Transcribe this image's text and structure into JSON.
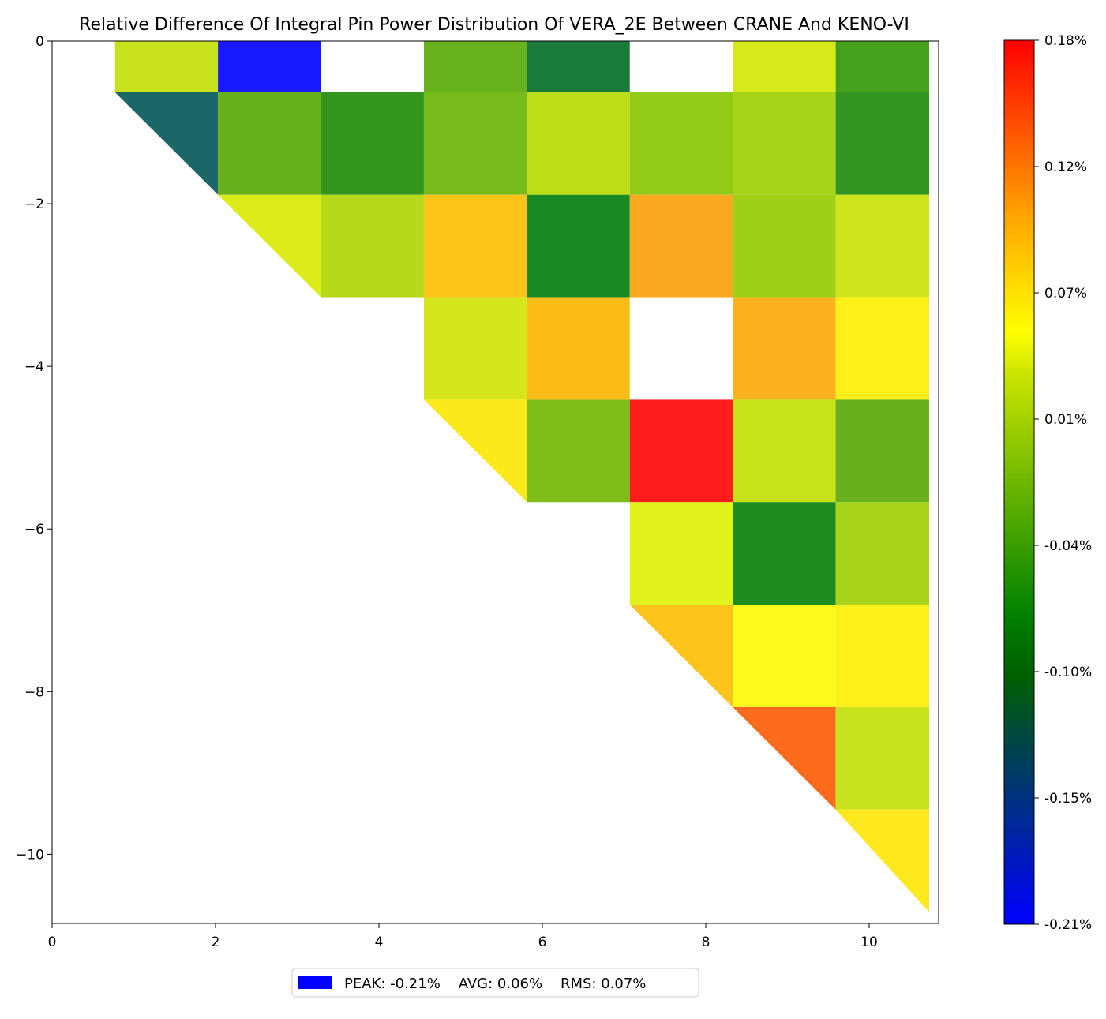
{
  "chart_data": {
    "type": "heatmap",
    "title": "Relative Difference Of Integral Pin Power Distribution Of VERA_2E Between CRANE And KENO-VI",
    "xlabel": "",
    "ylabel": "",
    "xlim": [
      0,
      10.85
    ],
    "ylim": [
      -10.85,
      0
    ],
    "xticks": [
      0,
      2,
      4,
      6,
      8,
      10
    ],
    "xtick_labels": [
      "0",
      "2",
      "4",
      "6",
      "8",
      "10"
    ],
    "yticks": [
      0,
      -2,
      -4,
      -6,
      -8,
      -10
    ],
    "ytick_labels": [
      "0",
      "−2",
      "−4",
      "−6",
      "−8",
      "−10"
    ],
    "colorbar": {
      "min": -0.21,
      "max": 0.18,
      "tick_labels": [
        "0.18%",
        "0.12%",
        "0.07%",
        "0.01%",
        "-0.04%",
        "-0.10%",
        "-0.15%",
        "-0.21%"
      ],
      "colors": {
        "-0.21": "#0000ff",
        "-0.10": "#008000",
        "0.04": "#ffff00",
        "0.10": "#ffa500",
        "0.18": "#ff0000"
      }
    },
    "cell_size": 1.26,
    "cells": [
      {
        "row": 0,
        "col": 1,
        "value": 0.005,
        "color": "#c9e21e"
      },
      {
        "row": 0,
        "col": 2,
        "value": -0.21,
        "color": "#1919ff"
      },
      {
        "row": 0,
        "col": 4,
        "value": -0.045,
        "color": "#68b21f"
      },
      {
        "row": 0,
        "col": 5,
        "value": -0.125,
        "color": "#1b7b3d"
      },
      {
        "row": 0,
        "col": 7,
        "value": 0.02,
        "color": "#d6e91b"
      },
      {
        "row": 0,
        "col": 8,
        "value": -0.07,
        "color": "#45a01e"
      },
      {
        "row": 1,
        "col": 1,
        "value": -0.15,
        "color": "#1b6666",
        "shape": "tri"
      },
      {
        "row": 1,
        "col": 2,
        "value": -0.05,
        "color": "#66b01e"
      },
      {
        "row": 1,
        "col": 3,
        "value": -0.085,
        "color": "#33951e"
      },
      {
        "row": 1,
        "col": 4,
        "value": -0.035,
        "color": "#78b91c"
      },
      {
        "row": 1,
        "col": 5,
        "value": 0.0,
        "color": "#bcdd18"
      },
      {
        "row": 1,
        "col": 6,
        "value": -0.02,
        "color": "#93c917"
      },
      {
        "row": 1,
        "col": 7,
        "value": -0.01,
        "color": "#a7d31a"
      },
      {
        "row": 1,
        "col": 8,
        "value": -0.085,
        "color": "#339421"
      },
      {
        "row": 2,
        "col": 2,
        "value": 0.02,
        "color": "#dcec1b",
        "shape": "tri"
      },
      {
        "row": 2,
        "col": 3,
        "value": -0.005,
        "color": "#b6da19"
      },
      {
        "row": 2,
        "col": 4,
        "value": 0.085,
        "color": "#fdc51a"
      },
      {
        "row": 2,
        "col": 5,
        "value": -0.1,
        "color": "#1c8a24"
      },
      {
        "row": 2,
        "col": 6,
        "value": 0.1,
        "color": "#fba821"
      },
      {
        "row": 2,
        "col": 7,
        "value": -0.015,
        "color": "#a0cf17"
      },
      {
        "row": 2,
        "col": 8,
        "value": 0.01,
        "color": "#cee41c"
      },
      {
        "row": 3,
        "col": 4,
        "value": 0.015,
        "color": "#d5e71c"
      },
      {
        "row": 3,
        "col": 5,
        "value": 0.085,
        "color": "#fcbc18"
      },
      {
        "row": 3,
        "col": 7,
        "value": 0.095,
        "color": "#fcb11e"
      },
      {
        "row": 3,
        "col": 8,
        "value": 0.055,
        "color": "#fdef18"
      },
      {
        "row": 4,
        "col": 4,
        "value": 0.055,
        "color": "#fbe91b",
        "shape": "tri"
      },
      {
        "row": 4,
        "col": 5,
        "value": -0.035,
        "color": "#80bd1a"
      },
      {
        "row": 4,
        "col": 6,
        "value": 0.18,
        "color": "#ff1c1c"
      },
      {
        "row": 4,
        "col": 7,
        "value": 0.005,
        "color": "#c6e218"
      },
      {
        "row": 4,
        "col": 8,
        "value": -0.05,
        "color": "#68b01e"
      },
      {
        "row": 5,
        "col": 6,
        "value": 0.03,
        "color": "#e2f21c"
      },
      {
        "row": 5,
        "col": 7,
        "value": -0.1,
        "color": "#1f8c22"
      },
      {
        "row": 5,
        "col": 8,
        "value": -0.01,
        "color": "#a8d31a"
      },
      {
        "row": 6,
        "col": 6,
        "value": 0.085,
        "color": "#fdc41b",
        "shape": "tri"
      },
      {
        "row": 6,
        "col": 7,
        "value": 0.045,
        "color": "#fbfa1b"
      },
      {
        "row": 6,
        "col": 8,
        "value": 0.055,
        "color": "#fdf11b"
      },
      {
        "row": 7,
        "col": 7,
        "value": 0.135,
        "color": "#ff6b1c",
        "shape": "tri"
      },
      {
        "row": 7,
        "col": 8,
        "value": 0.005,
        "color": "#c6e31e"
      },
      {
        "row": 8,
        "col": 8,
        "value": 0.06,
        "color": "#fde91d",
        "shape": "tri"
      }
    ]
  },
  "legend": {
    "swatch_color": "#0000ff",
    "text": "PEAK: -0.21%    AVG: 0.06%    RMS: 0.07%"
  }
}
